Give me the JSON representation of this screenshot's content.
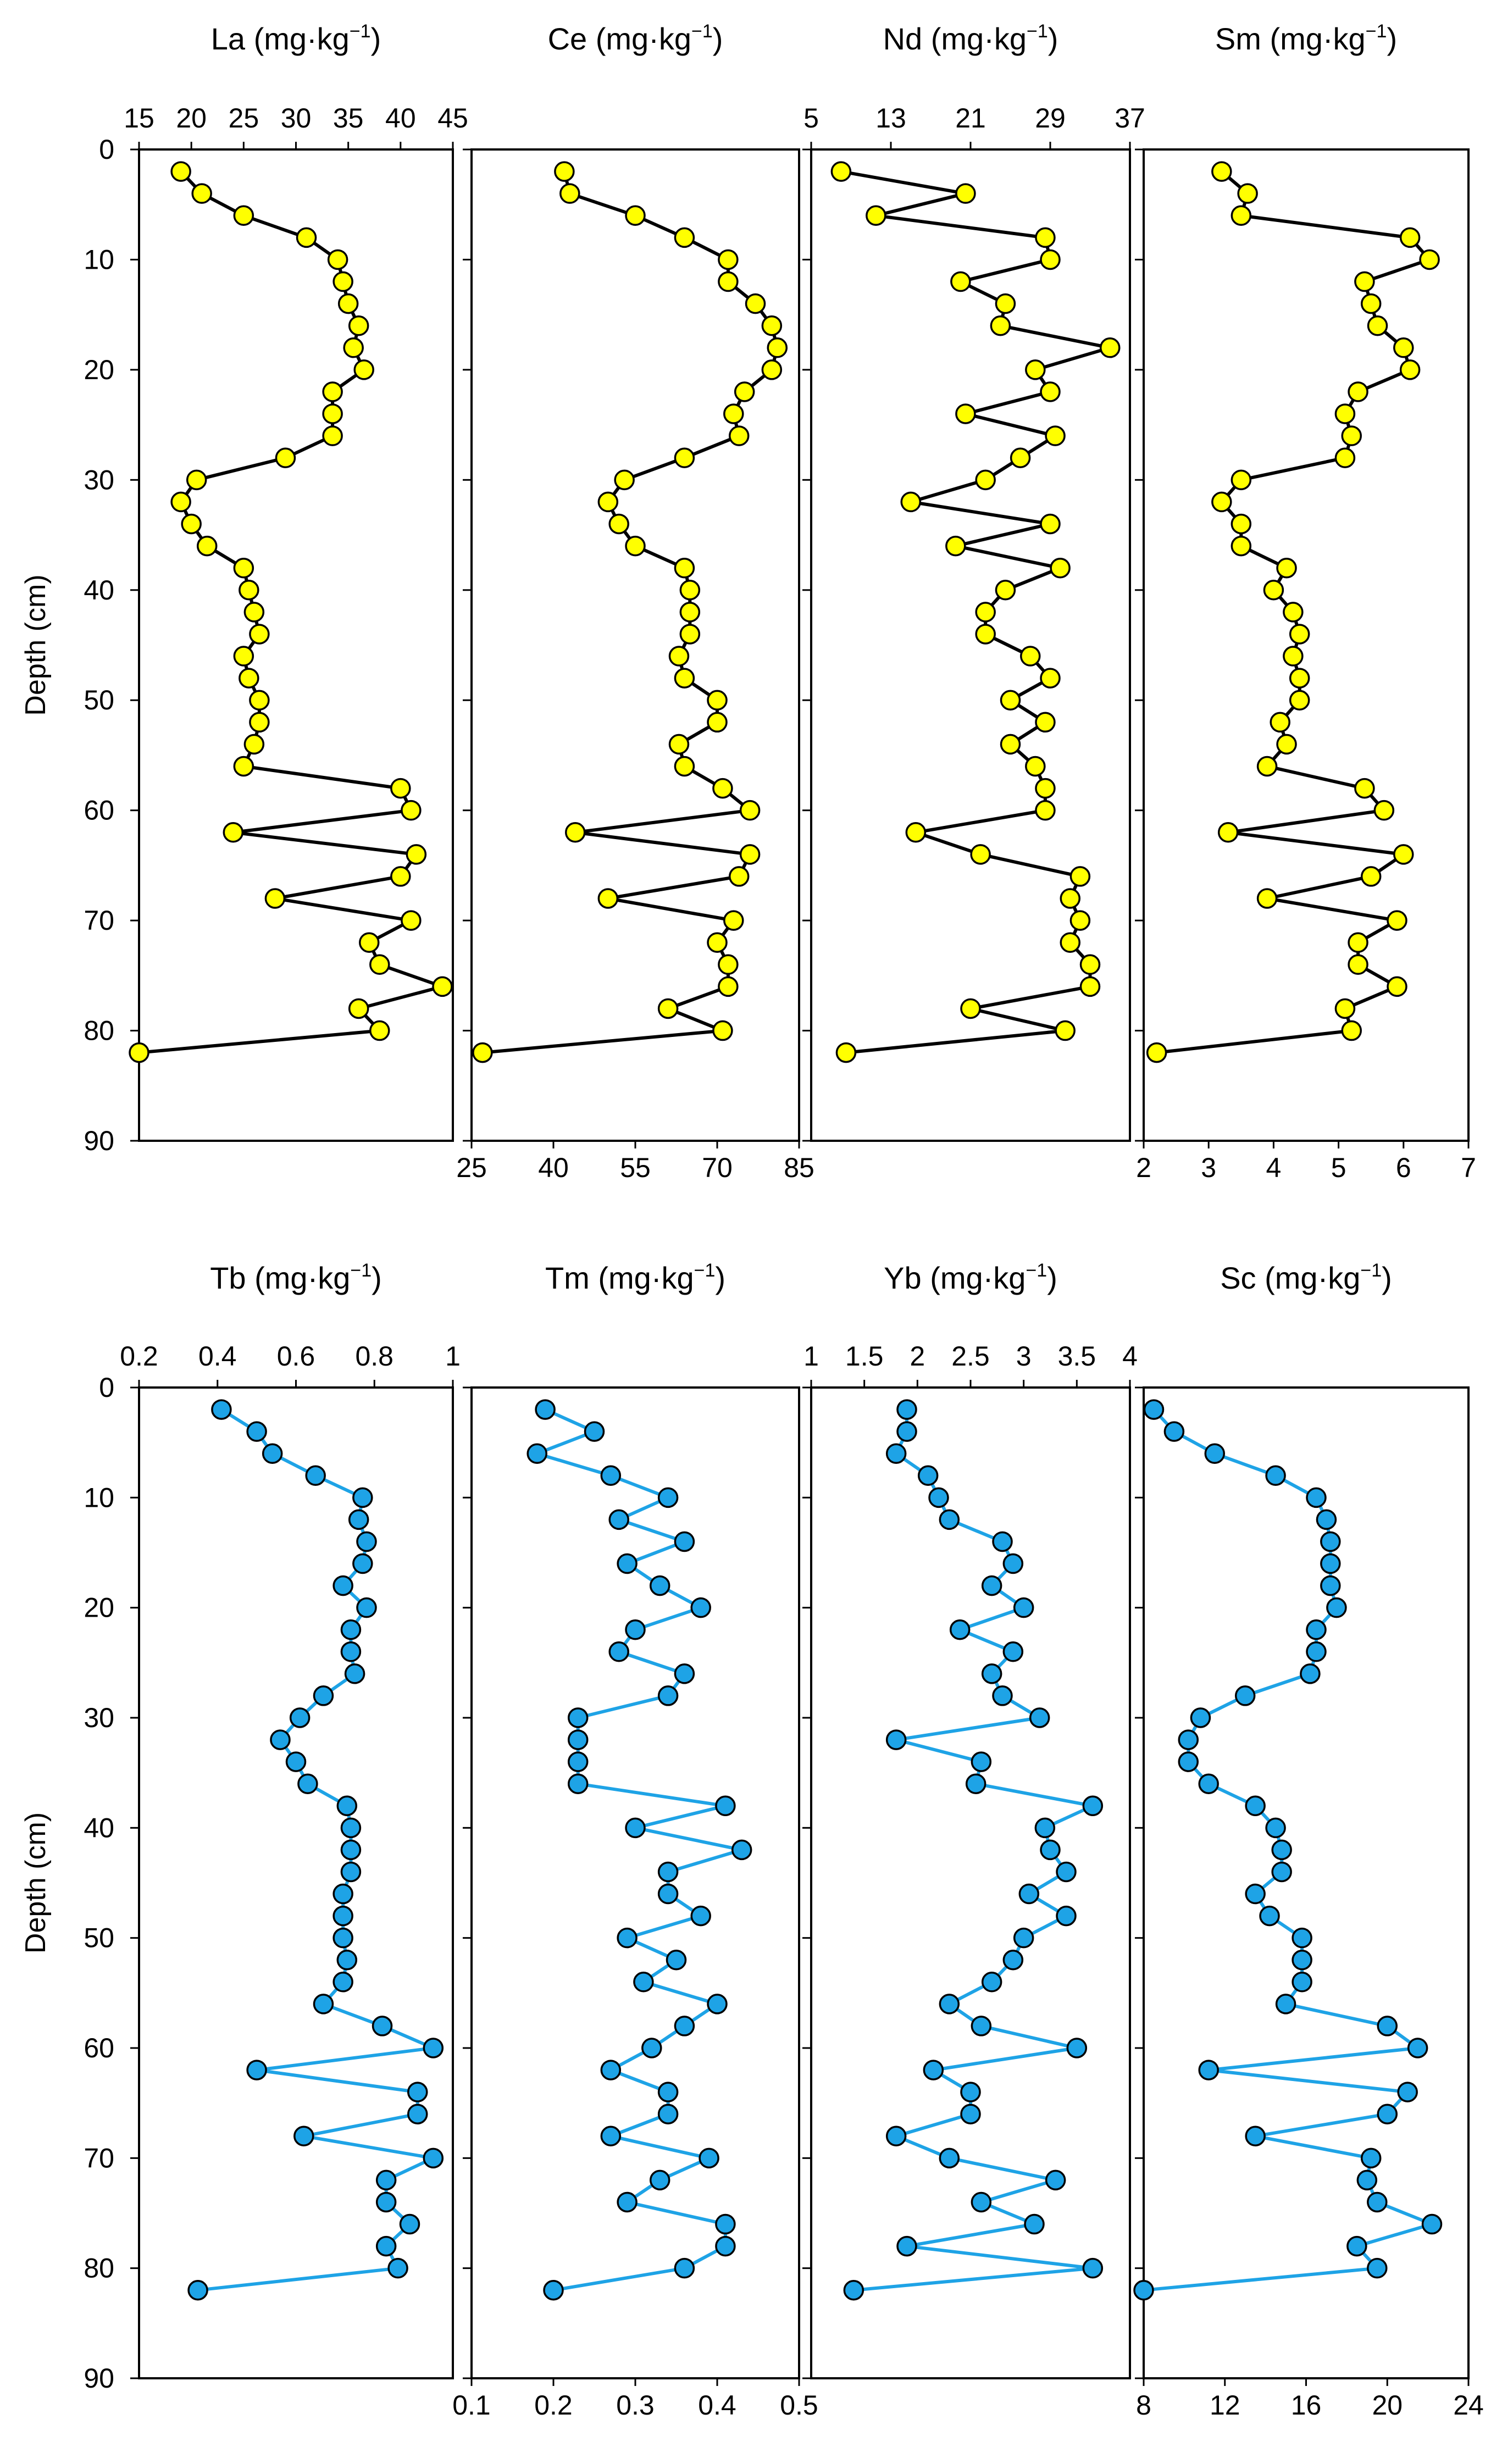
{
  "figure": {
    "ylabel": "Depth (cm)",
    "depth_ticks": [
      "0",
      "10",
      "20",
      "30",
      "40",
      "50",
      "60",
      "70",
      "80",
      "90"
    ],
    "unit_main": "mg·kg",
    "unit_sup": "−1",
    "styles": {
      "yellow": {
        "line": "#000000",
        "fill": "#ffff00",
        "stroke": "#000000"
      },
      "blue": {
        "line": "#1ea3e6",
        "fill": "#1ea3e6",
        "stroke": "#000000"
      }
    }
  },
  "chart_data": [
    {
      "type": "line",
      "element": "La",
      "title": "La (mg·kg⁻¹)",
      "ylabel": "Depth (cm)",
      "style": "yellow",
      "xlim": [
        15,
        45
      ],
      "ylim": [
        0,
        90
      ],
      "xtick_position": "top",
      "xticks": [
        "15",
        "20",
        "25",
        "30",
        "35",
        "40",
        "45"
      ],
      "depth": [
        2,
        4,
        6,
        8,
        10,
        12,
        14,
        16,
        18,
        20,
        22,
        24,
        26,
        28,
        30,
        32,
        34,
        36,
        38,
        40,
        42,
        44,
        46,
        48,
        50,
        52,
        54,
        56,
        58,
        60,
        62,
        64,
        66,
        68,
        70,
        72,
        74,
        76,
        78,
        80,
        82
      ],
      "values": [
        19,
        21,
        25,
        31,
        34,
        34.5,
        35,
        36,
        35.5,
        36.5,
        33.5,
        33.5,
        33.5,
        29,
        20.5,
        19,
        20,
        21.5,
        25,
        25.5,
        26,
        26.5,
        25,
        25.5,
        26.5,
        26.5,
        26,
        25,
        40,
        41,
        24,
        41.5,
        40,
        28,
        41,
        37,
        38,
        44,
        36,
        38,
        15
      ]
    },
    {
      "type": "line",
      "element": "Ce",
      "title": "Ce (mg·kg⁻¹)",
      "style": "yellow",
      "xlim": [
        25,
        85
      ],
      "ylim": [
        0,
        90
      ],
      "xtick_position": "bottom",
      "xticks": [
        "25",
        "40",
        "55",
        "70",
        "85"
      ],
      "depth": [
        2,
        4,
        6,
        8,
        10,
        12,
        14,
        16,
        18,
        20,
        22,
        24,
        26,
        28,
        30,
        32,
        34,
        36,
        38,
        40,
        42,
        44,
        46,
        48,
        50,
        52,
        54,
        56,
        58,
        60,
        62,
        64,
        66,
        68,
        70,
        72,
        74,
        76,
        78,
        80,
        82
      ],
      "values": [
        42,
        43,
        55,
        64,
        72,
        72,
        77,
        80,
        81,
        80,
        75,
        73,
        74,
        64,
        53,
        50,
        52,
        55,
        64,
        65,
        65,
        65,
        63,
        64,
        70,
        70,
        63,
        64,
        71,
        76,
        44,
        76,
        74,
        50,
        73,
        70,
        72,
        72,
        61,
        71,
        27
      ]
    },
    {
      "type": "line",
      "element": "Nd",
      "title": "Nd (mg·kg⁻¹)",
      "style": "yellow",
      "xlim": [
        5,
        37
      ],
      "ylim": [
        0,
        90
      ],
      "xtick_position": "top",
      "xticks": [
        "5",
        "13",
        "21",
        "29",
        "37"
      ],
      "depth": [
        2,
        4,
        6,
        8,
        10,
        12,
        14,
        16,
        18,
        20,
        22,
        24,
        26,
        28,
        30,
        32,
        34,
        36,
        38,
        40,
        42,
        44,
        46,
        48,
        50,
        52,
        54,
        56,
        58,
        60,
        62,
        64,
        66,
        68,
        70,
        72,
        74,
        76,
        78,
        80,
        82
      ],
      "values": [
        8,
        20.5,
        11.5,
        28.5,
        29,
        20,
        24.5,
        24,
        35,
        27.5,
        29,
        20.5,
        29.5,
        26,
        22.5,
        15,
        29,
        19.5,
        30,
        24.5,
        22.5,
        22.5,
        27,
        29,
        25,
        28.5,
        25,
        27.5,
        28.5,
        28.5,
        15.5,
        22,
        32,
        31,
        32,
        31,
        33,
        33,
        21,
        30.5,
        8.5
      ]
    },
    {
      "type": "line",
      "element": "Sm",
      "title": "Sm (mg·kg⁻¹)",
      "style": "yellow",
      "xlim": [
        2,
        7
      ],
      "ylim": [
        0,
        90
      ],
      "xtick_position": "bottom",
      "xticks": [
        "2",
        "3",
        "4",
        "5",
        "6",
        "7"
      ],
      "depth": [
        2,
        4,
        6,
        8,
        10,
        12,
        14,
        16,
        18,
        20,
        22,
        24,
        26,
        28,
        30,
        32,
        34,
        36,
        38,
        40,
        42,
        44,
        46,
        48,
        50,
        52,
        54,
        56,
        58,
        60,
        62,
        64,
        66,
        68,
        70,
        72,
        74,
        76,
        78,
        80,
        82
      ],
      "values": [
        3.2,
        3.6,
        3.5,
        6.1,
        6.4,
        5.4,
        5.5,
        5.6,
        6.0,
        6.1,
        5.3,
        5.1,
        5.2,
        5.1,
        3.5,
        3.2,
        3.5,
        3.5,
        4.2,
        4.0,
        4.3,
        4.4,
        4.3,
        4.4,
        4.4,
        4.1,
        4.2,
        3.9,
        5.4,
        5.7,
        3.3,
        6.0,
        5.5,
        3.9,
        5.9,
        5.3,
        5.3,
        5.9,
        5.1,
        5.2,
        2.2
      ]
    },
    {
      "type": "line",
      "element": "Tb",
      "title": "Tb (mg·kg⁻¹)",
      "ylabel": "Depth (cm)",
      "style": "blue",
      "xlim": [
        0.2,
        1
      ],
      "ylim": [
        0,
        90
      ],
      "xtick_position": "top",
      "xticks": [
        "0.2",
        "0.4",
        "0.6",
        "0.8",
        "1"
      ],
      "depth": [
        2,
        4,
        6,
        8,
        10,
        12,
        14,
        16,
        18,
        20,
        22,
        24,
        26,
        28,
        30,
        32,
        34,
        36,
        38,
        40,
        42,
        44,
        46,
        48,
        50,
        52,
        54,
        56,
        58,
        60,
        62,
        64,
        66,
        68,
        70,
        72,
        74,
        76,
        78,
        80,
        82
      ],
      "values": [
        0.41,
        0.5,
        0.54,
        0.65,
        0.77,
        0.76,
        0.78,
        0.77,
        0.72,
        0.78,
        0.74,
        0.74,
        0.75,
        0.67,
        0.61,
        0.56,
        0.6,
        0.63,
        0.73,
        0.74,
        0.74,
        0.74,
        0.72,
        0.72,
        0.72,
        0.73,
        0.72,
        0.67,
        0.82,
        0.95,
        0.5,
        0.91,
        0.91,
        0.62,
        0.95,
        0.83,
        0.83,
        0.89,
        0.83,
        0.86,
        0.35
      ]
    },
    {
      "type": "line",
      "element": "Tm",
      "title": "Tm (mg·kg⁻¹)",
      "style": "blue",
      "xlim": [
        0.1,
        0.5
      ],
      "ylim": [
        0,
        90
      ],
      "xtick_position": "bottom",
      "xticks": [
        "0.1",
        "0.2",
        "0.3",
        "0.4",
        "0.5"
      ],
      "depth": [
        2,
        4,
        6,
        8,
        10,
        12,
        14,
        16,
        18,
        20,
        22,
        24,
        26,
        28,
        30,
        32,
        34,
        36,
        38,
        40,
        42,
        44,
        46,
        48,
        50,
        52,
        54,
        56,
        58,
        60,
        62,
        64,
        66,
        68,
        70,
        72,
        74,
        76,
        78,
        80,
        82
      ],
      "values": [
        0.19,
        0.25,
        0.18,
        0.27,
        0.34,
        0.28,
        0.36,
        0.29,
        0.33,
        0.38,
        0.3,
        0.28,
        0.36,
        0.34,
        0.23,
        0.23,
        0.23,
        0.23,
        0.41,
        0.3,
        0.43,
        0.34,
        0.34,
        0.38,
        0.29,
        0.35,
        0.31,
        0.4,
        0.36,
        0.32,
        0.27,
        0.34,
        0.34,
        0.27,
        0.39,
        0.33,
        0.29,
        0.41,
        0.41,
        0.36,
        0.2
      ]
    },
    {
      "type": "line",
      "element": "Yb",
      "title": "Yb (mg·kg⁻¹)",
      "style": "blue",
      "xlim": [
        1,
        4
      ],
      "ylim": [
        0,
        90
      ],
      "xtick_position": "top",
      "xticks": [
        "1",
        "1.5",
        "2",
        "2.5",
        "3",
        "3.5",
        "4"
      ],
      "depth": [
        2,
        4,
        6,
        8,
        10,
        12,
        14,
        16,
        18,
        20,
        22,
        24,
        26,
        28,
        30,
        32,
        34,
        36,
        38,
        40,
        42,
        44,
        46,
        48,
        50,
        52,
        54,
        56,
        58,
        60,
        62,
        64,
        66,
        68,
        70,
        72,
        74,
        76,
        78,
        80,
        82
      ],
      "values": [
        1.9,
        1.9,
        1.8,
        2.1,
        2.2,
        2.3,
        2.8,
        2.9,
        2.7,
        3.0,
        2.4,
        2.9,
        2.7,
        2.8,
        3.15,
        1.8,
        2.6,
        2.55,
        3.65,
        3.2,
        3.25,
        3.4,
        3.05,
        3.4,
        3.0,
        2.9,
        2.7,
        2.3,
        2.6,
        3.5,
        2.15,
        2.5,
        2.5,
        1.8,
        2.3,
        3.3,
        2.6,
        3.1,
        1.9,
        3.65,
        1.4
      ]
    },
    {
      "type": "line",
      "element": "Sc",
      "title": "Sc (mg·kg⁻¹)",
      "style": "blue",
      "xlim": [
        8,
        24
      ],
      "ylim": [
        0,
        90
      ],
      "xtick_position": "bottom",
      "xticks": [
        "8",
        "12",
        "16",
        "20",
        "24"
      ],
      "depth": [
        2,
        4,
        6,
        8,
        10,
        12,
        14,
        16,
        18,
        20,
        22,
        24,
        26,
        28,
        30,
        32,
        34,
        36,
        38,
        40,
        42,
        44,
        46,
        48,
        50,
        52,
        54,
        56,
        58,
        60,
        62,
        64,
        66,
        68,
        70,
        72,
        74,
        76,
        78,
        80,
        82
      ],
      "values": [
        8.5,
        9.5,
        11.5,
        14.5,
        16.5,
        17,
        17.2,
        17.2,
        17.2,
        17.5,
        16.5,
        16.5,
        16.2,
        13,
        10.8,
        10.2,
        10.2,
        11.2,
        13.5,
        14.5,
        14.8,
        14.8,
        13.5,
        14.2,
        15.8,
        15.8,
        15.8,
        15,
        20,
        21.5,
        11.2,
        21,
        20,
        13.5,
        19.2,
        19,
        19.5,
        22.2,
        18.5,
        19.5,
        8
      ]
    }
  ]
}
